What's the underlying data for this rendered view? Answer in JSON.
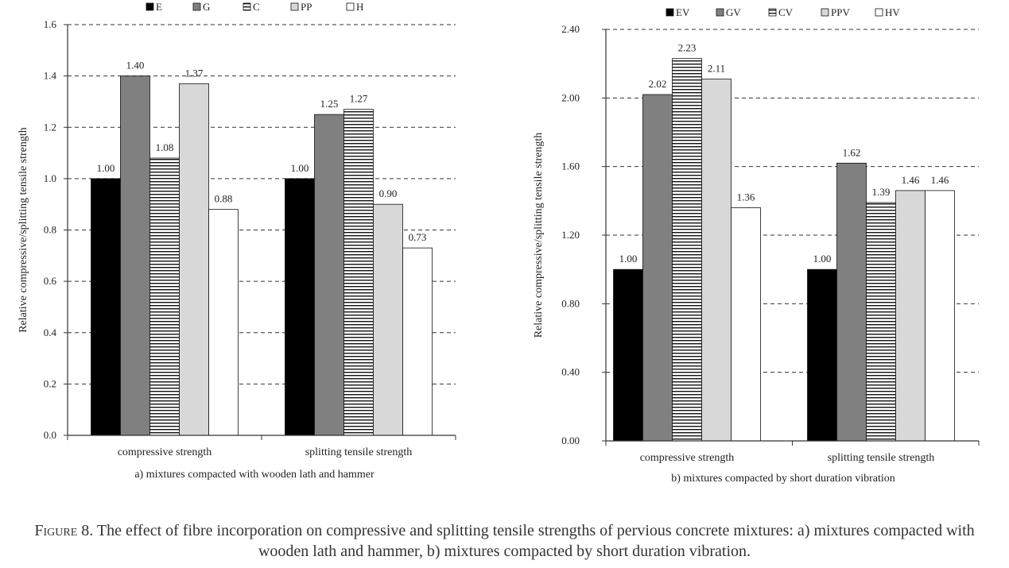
{
  "chart_data": [
    {
      "type": "bar",
      "categories": [
        "compressive strength",
        "splitting tensile strength"
      ],
      "series": [
        {
          "name": "E",
          "values": [
            1.0,
            1.0
          ],
          "labels": [
            "1.00",
            "1.00"
          ],
          "fill": "solid-black"
        },
        {
          "name": "G",
          "values": [
            1.4,
            1.25
          ],
          "labels": [
            "1.40",
            "1.25"
          ],
          "fill": "solid-gray"
        },
        {
          "name": "C",
          "values": [
            1.08,
            1.27
          ],
          "labels": [
            "1.08",
            "1.27"
          ],
          "fill": "horizontal-stripes"
        },
        {
          "name": "PP",
          "values": [
            1.37,
            0.9
          ],
          "labels": [
            "1.37",
            "0.90"
          ],
          "fill": "light-gray"
        },
        {
          "name": "H",
          "values": [
            0.88,
            0.73
          ],
          "labels": [
            "0.88",
            "0.73"
          ],
          "fill": "white"
        }
      ],
      "ylim": [
        0,
        1.6
      ],
      "yticks": [
        0.0,
        0.2,
        0.4,
        0.6,
        0.8,
        1.0,
        1.2,
        1.4,
        1.6
      ],
      "ytick_labels": [
        "0.0",
        "0.2",
        "0.4",
        "0.6",
        "0.8",
        "1.0",
        "1.2",
        "1.4",
        "1.6"
      ],
      "ylabel": "Relative compressive/splitting tensile strength",
      "xlabel": "",
      "subtitle": "a) mixtures  compacted with wooden lath and hammer",
      "grid": "horizontal dashed",
      "legend_position": "top"
    },
    {
      "type": "bar",
      "categories": [
        "compressive strength",
        "splitting tensile strength"
      ],
      "series": [
        {
          "name": "EV",
          "values": [
            1.0,
            1.0
          ],
          "labels": [
            "1.00",
            "1.00"
          ],
          "fill": "solid-black"
        },
        {
          "name": "GV",
          "values": [
            2.02,
            1.62
          ],
          "labels": [
            "2.02",
            "1.62"
          ],
          "fill": "solid-gray"
        },
        {
          "name": "CV",
          "values": [
            2.23,
            1.39
          ],
          "labels": [
            "2.23",
            "1.39"
          ],
          "fill": "horizontal-stripes"
        },
        {
          "name": "PPV",
          "values": [
            2.11,
            1.46
          ],
          "labels": [
            "2.11",
            "1.46"
          ],
          "fill": "light-gray"
        },
        {
          "name": "HV",
          "values": [
            1.36,
            1.46
          ],
          "labels": [
            "1.36",
            "1.46"
          ],
          "fill": "white"
        }
      ],
      "ylim": [
        0,
        2.4
      ],
      "yticks": [
        0.0,
        0.4,
        0.8,
        1.2,
        1.6,
        2.0,
        2.4
      ],
      "ytick_labels": [
        "0.00",
        "0.40",
        "0.80",
        "1.20",
        "1.60",
        "2.00",
        "2.40"
      ],
      "ylabel": "Relative compressive/splitting tensile strength",
      "xlabel": "",
      "subtitle": "b) mixtures  compacted by short duration vibration",
      "grid": "horizontal dashed",
      "legend_position": "top"
    }
  ],
  "caption": {
    "figure_label": "Figure 8.",
    "text": "The effect of fibre incorporation on compressive and splitting tensile strengths of pervious concrete mixtures: a) mixtures compacted with wooden lath and hammer, b) mixtures compacted by short duration vibration."
  }
}
